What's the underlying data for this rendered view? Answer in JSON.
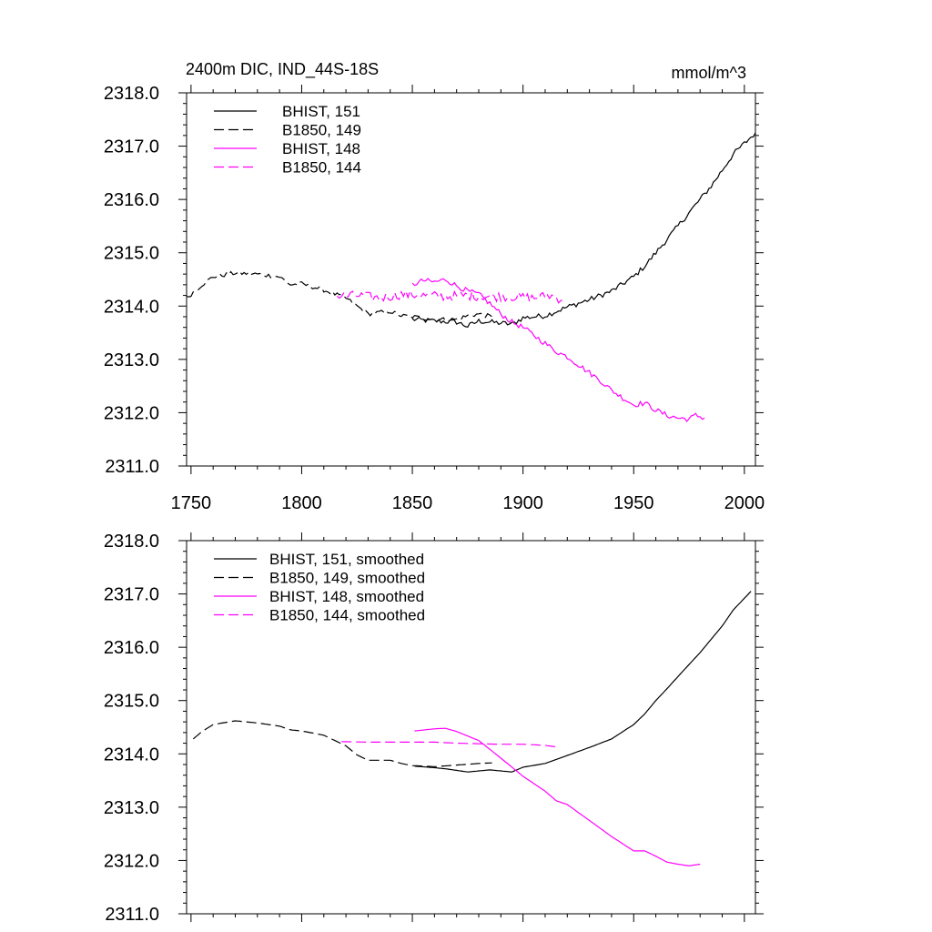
{
  "colors": {
    "black": "#000000",
    "magenta": "#ff00ff"
  },
  "chart_data": [
    {
      "type": "line",
      "title": "2400m DIC, IND_44S-18S",
      "units": "mmol/m^3",
      "xlim": [
        1748,
        2005
      ],
      "ylim": [
        2311.0,
        2318.0
      ],
      "xticks": [
        1750,
        1800,
        1850,
        1900,
        1950,
        2000
      ],
      "yticks": [
        2311.0,
        2312.0,
        2313.0,
        2314.0,
        2315.0,
        2316.0,
        2317.0,
        2318.0
      ],
      "ytick_labels": [
        "2311.0",
        "2312.0",
        "2313.0",
        "2314.0",
        "2315.0",
        "2316.0",
        "2317.0",
        "2318.0"
      ],
      "xtick_labels": [
        "1750",
        "1800",
        "1850",
        "1900",
        "1950",
        "2000"
      ],
      "legend_position": "top-left",
      "series": [
        {
          "name": "BHIST, 151",
          "color": "black",
          "dash": "solid",
          "noise": 0.05,
          "points": [
            [
              1850,
              2313.75
            ],
            [
              1860,
              2313.72
            ],
            [
              1870,
              2313.7
            ],
            [
              1875,
              2313.62
            ],
            [
              1880,
              2313.72
            ],
            [
              1890,
              2313.68
            ],
            [
              1895,
              2313.66
            ],
            [
              1900,
              2313.78
            ],
            [
              1910,
              2313.82
            ],
            [
              1920,
              2313.98
            ],
            [
              1930,
              2314.12
            ],
            [
              1940,
              2314.28
            ],
            [
              1950,
              2314.55
            ],
            [
              1955,
              2314.75
            ],
            [
              1960,
              2315.0
            ],
            [
              1965,
              2315.25
            ],
            [
              1970,
              2315.5
            ],
            [
              1975,
              2315.75
            ],
            [
              1980,
              2316.0
            ],
            [
              1985,
              2316.25
            ],
            [
              1990,
              2316.55
            ],
            [
              1995,
              2316.85
            ],
            [
              2000,
              2317.05
            ],
            [
              2005,
              2317.25
            ]
          ]
        },
        {
          "name": "B1850, 149",
          "color": "black",
          "dash": "long",
          "noise": 0.04,
          "points": [
            [
              1748,
              2314.15
            ],
            [
              1755,
              2314.4
            ],
            [
              1760,
              2314.55
            ],
            [
              1770,
              2314.62
            ],
            [
              1780,
              2314.6
            ],
            [
              1790,
              2314.55
            ],
            [
              1795,
              2314.4
            ],
            [
              1800,
              2314.42
            ],
            [
              1810,
              2314.3
            ],
            [
              1820,
              2314.15
            ],
            [
              1825,
              2314.0
            ],
            [
              1830,
              2313.85
            ],
            [
              1835,
              2313.88
            ],
            [
              1840,
              2313.9
            ],
            [
              1845,
              2313.82
            ],
            [
              1850,
              2313.8
            ],
            [
              1860,
              2313.75
            ],
            [
              1870,
              2313.75
            ],
            [
              1875,
              2313.82
            ],
            [
              1880,
              2313.85
            ],
            [
              1886,
              2313.8
            ]
          ]
        },
        {
          "name": "BHIST, 148",
          "color": "magenta",
          "dash": "solid",
          "noise": 0.05,
          "points": [
            [
              1850,
              2314.4
            ],
            [
              1855,
              2314.48
            ],
            [
              1860,
              2314.45
            ],
            [
              1865,
              2314.5
            ],
            [
              1870,
              2314.38
            ],
            [
              1875,
              2314.28
            ],
            [
              1880,
              2314.22
            ],
            [
              1885,
              2314.05
            ],
            [
              1890,
              2313.85
            ],
            [
              1895,
              2313.7
            ],
            [
              1900,
              2313.6
            ],
            [
              1905,
              2313.45
            ],
            [
              1910,
              2313.3
            ],
            [
              1915,
              2313.15
            ],
            [
              1920,
              2313.05
            ],
            [
              1925,
              2312.9
            ],
            [
              1930,
              2312.75
            ],
            [
              1935,
              2312.6
            ],
            [
              1940,
              2312.42
            ],
            [
              1945,
              2312.28
            ],
            [
              1950,
              2312.15
            ],
            [
              1955,
              2312.18
            ],
            [
              1960,
              2312.05
            ],
            [
              1965,
              2311.95
            ],
            [
              1970,
              2311.9
            ],
            [
              1975,
              2311.88
            ],
            [
              1978,
              2311.95
            ],
            [
              1982,
              2311.9
            ]
          ]
        },
        {
          "name": "B1850, 144",
          "color": "magenta",
          "dash": "long",
          "noise": 0.09,
          "points": [
            [
              1816,
              2314.18
            ],
            [
              1825,
              2314.2
            ],
            [
              1835,
              2314.15
            ],
            [
              1845,
              2314.22
            ],
            [
              1855,
              2314.2
            ],
            [
              1865,
              2314.18
            ],
            [
              1875,
              2314.2
            ],
            [
              1885,
              2314.18
            ],
            [
              1895,
              2314.18
            ],
            [
              1905,
              2314.15
            ],
            [
              1912,
              2314.2
            ],
            [
              1918,
              2314.12
            ]
          ]
        }
      ]
    },
    {
      "type": "line",
      "xlim": [
        1748,
        2005
      ],
      "ylim": [
        2311.0,
        2318.0
      ],
      "xticks": [
        1750,
        1800,
        1850,
        1900,
        1950,
        2000
      ],
      "yticks": [
        2311.0,
        2312.0,
        2313.0,
        2314.0,
        2315.0,
        2316.0,
        2317.0,
        2318.0
      ],
      "ytick_labels": [
        "2311.0",
        "2312.0",
        "2313.0",
        "2314.0",
        "2315.0",
        "2316.0",
        "2317.0",
        "2318.0"
      ],
      "legend_position": "top-left",
      "series": [
        {
          "name": "BHIST, 151, smoothed",
          "color": "black",
          "dash": "solid",
          "noise": 0,
          "points": [
            [
              1851,
              2313.77
            ],
            [
              1860,
              2313.74
            ],
            [
              1865,
              2313.72
            ],
            [
              1875,
              2313.66
            ],
            [
              1885,
              2313.7
            ],
            [
              1895,
              2313.66
            ],
            [
              1900,
              2313.75
            ],
            [
              1910,
              2313.82
            ],
            [
              1920,
              2313.97
            ],
            [
              1930,
              2314.12
            ],
            [
              1940,
              2314.28
            ],
            [
              1950,
              2314.55
            ],
            [
              1955,
              2314.75
            ],
            [
              1960,
              2315.0
            ],
            [
              1965,
              2315.22
            ],
            [
              1970,
              2315.45
            ],
            [
              1980,
              2315.9
            ],
            [
              1990,
              2316.4
            ],
            [
              1995,
              2316.7
            ],
            [
              2003,
              2317.05
            ]
          ]
        },
        {
          "name": "B1850, 149, smoothed",
          "color": "black",
          "dash": "long",
          "noise": 0,
          "points": [
            [
              1751,
              2314.28
            ],
            [
              1755,
              2314.42
            ],
            [
              1760,
              2314.55
            ],
            [
              1770,
              2314.62
            ],
            [
              1780,
              2314.58
            ],
            [
              1790,
              2314.52
            ],
            [
              1795,
              2314.45
            ],
            [
              1800,
              2314.43
            ],
            [
              1810,
              2314.35
            ],
            [
              1820,
              2314.15
            ],
            [
              1825,
              2313.98
            ],
            [
              1830,
              2313.88
            ],
            [
              1840,
              2313.88
            ],
            [
              1845,
              2313.82
            ],
            [
              1850,
              2313.78
            ],
            [
              1860,
              2313.76
            ],
            [
              1870,
              2313.79
            ],
            [
              1880,
              2313.82
            ],
            [
              1886,
              2313.83
            ]
          ]
        },
        {
          "name": "BHIST, 148, smoothed",
          "color": "magenta",
          "dash": "solid",
          "noise": 0,
          "points": [
            [
              1851,
              2314.43
            ],
            [
              1860,
              2314.47
            ],
            [
              1865,
              2314.48
            ],
            [
              1870,
              2314.42
            ],
            [
              1880,
              2314.25
            ],
            [
              1890,
              2313.92
            ],
            [
              1900,
              2313.58
            ],
            [
              1910,
              2313.3
            ],
            [
              1915,
              2313.12
            ],
            [
              1920,
              2313.05
            ],
            [
              1930,
              2312.75
            ],
            [
              1940,
              2312.45
            ],
            [
              1950,
              2312.18
            ],
            [
              1955,
              2312.18
            ],
            [
              1960,
              2312.08
            ],
            [
              1965,
              2311.97
            ],
            [
              1970,
              2311.93
            ],
            [
              1975,
              2311.9
            ],
            [
              1980,
              2311.93
            ]
          ]
        },
        {
          "name": "B1850, 144, smoothed",
          "color": "magenta",
          "dash": "long",
          "noise": 0,
          "points": [
            [
              1818,
              2314.23
            ],
            [
              1830,
              2314.22
            ],
            [
              1840,
              2314.22
            ],
            [
              1850,
              2314.22
            ],
            [
              1860,
              2314.22
            ],
            [
              1870,
              2314.2
            ],
            [
              1880,
              2314.19
            ],
            [
              1890,
              2314.18
            ],
            [
              1900,
              2314.18
            ],
            [
              1910,
              2314.16
            ],
            [
              1915,
              2314.13
            ]
          ]
        }
      ]
    }
  ]
}
